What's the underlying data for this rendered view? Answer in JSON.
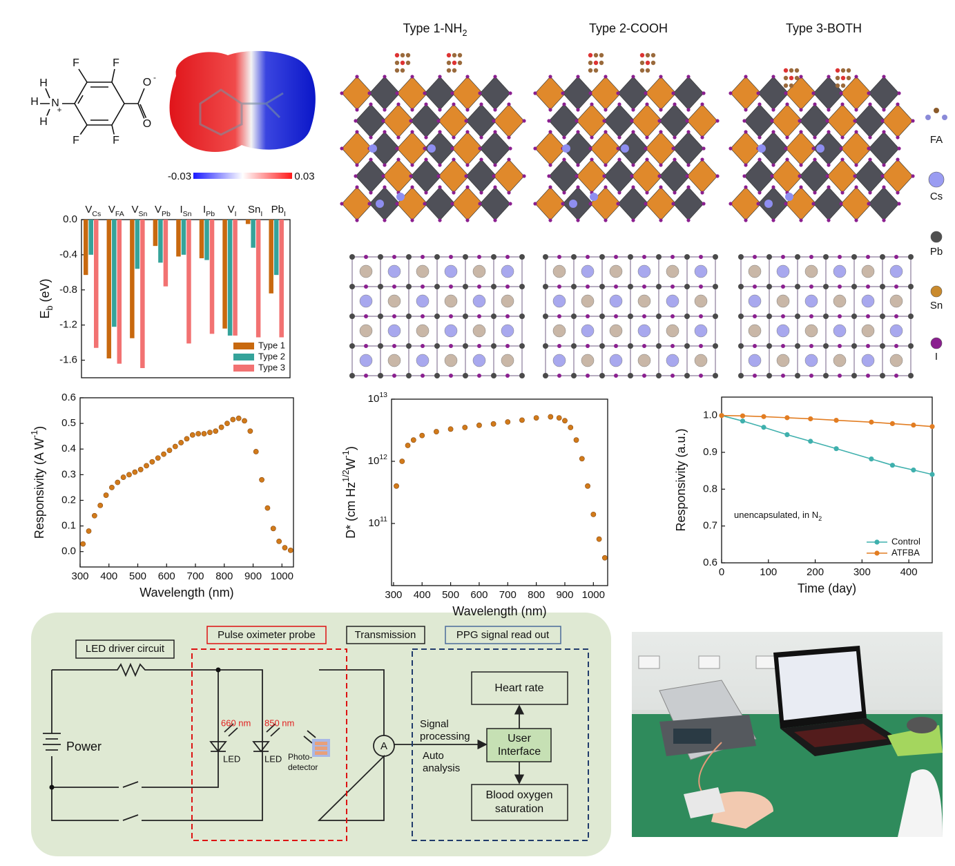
{
  "figure": {
    "molecule": {
      "atoms": [
        "H",
        "H",
        "H",
        "N",
        "+",
        "F",
        "F",
        "F",
        "F",
        "O",
        "-",
        "O"
      ]
    },
    "esp_scale": [
      "-0.03",
      "0.03"
    ],
    "structures": {
      "titles": [
        [
          {
            "text": "Type 1-NH"
          },
          {
            "text": "2",
            "sub": true
          }
        ],
        [
          {
            "text": "Type 2-COOH"
          }
        ],
        [
          {
            "text": "Type 3-BOTH"
          }
        ]
      ],
      "atom_legend": [
        "FA",
        "Cs",
        "Pb",
        "Sn",
        "I"
      ]
    },
    "circuit": {
      "led_driver": "LED driver circuit",
      "probe": "Pulse oximeter probe",
      "transmission": "Transmission",
      "ppg": "PPG signal read out",
      "power": "Power",
      "wl1": "660 nm",
      "wl2": "850 nm",
      "led1": "LED",
      "led2": "LED",
      "photodetector": [
        "Photo-",
        "detector"
      ],
      "ammeter": "A",
      "signal_processing": [
        "Signal",
        "processing"
      ],
      "auto_analysis": [
        "Auto",
        "analysis"
      ],
      "heart_rate": "Heart rate",
      "user_interface": [
        "User",
        "Interface"
      ],
      "blood_oxygen": [
        "Blood oxygen",
        "saturation"
      ]
    }
  },
  "chart_data": [
    {
      "type": "bar",
      "xaxis_position": "top",
      "categories": [
        [
          {
            "text": "V"
          },
          {
            "text": "Cs",
            "sub": true
          }
        ],
        [
          {
            "text": "V"
          },
          {
            "text": "FA",
            "sub": true
          }
        ],
        [
          {
            "text": "V"
          },
          {
            "text": "Sn",
            "sub": true
          }
        ],
        [
          {
            "text": "V"
          },
          {
            "text": "Pb",
            "sub": true
          }
        ],
        [
          {
            "text": "I"
          },
          {
            "text": "Sn",
            "sub": true
          }
        ],
        [
          {
            "text": "I"
          },
          {
            "text": "Pb",
            "sub": true
          }
        ],
        [
          {
            "text": "V"
          },
          {
            "text": "I",
            "sub": true
          }
        ],
        [
          {
            "text": "Sn"
          },
          {
            "text": "I",
            "sub": true
          }
        ],
        [
          {
            "text": "Pb"
          },
          {
            "text": "I",
            "sub": true
          }
        ]
      ],
      "series": [
        {
          "name": "Type 1",
          "color": "#c8690f",
          "values": [
            -0.63,
            -1.58,
            -1.35,
            -0.3,
            -0.42,
            -0.44,
            -1.24,
            -0.05,
            -0.84
          ]
        },
        {
          "name": "Type 2",
          "color": "#35a39a",
          "values": [
            -0.4,
            -1.22,
            -0.56,
            -0.49,
            -0.4,
            -0.46,
            -1.32,
            -0.32,
            -0.63
          ]
        },
        {
          "name": "Type 3",
          "color": "#f27272",
          "values": [
            -1.46,
            -1.64,
            -1.69,
            -0.76,
            -1.41,
            -1.3,
            -1.32,
            -1.34,
            -1.34
          ]
        }
      ],
      "ylabel": [
        {
          "text": "E"
        },
        {
          "text": "b",
          "sub": true
        },
        {
          "text": " (eV)"
        }
      ],
      "ylim": [
        -1.8,
        0
      ],
      "yticks": [
        {
          "value": 0,
          "label": "0.0"
        },
        -0.4,
        -0.8,
        -1.2,
        -1.6
      ],
      "legend": "lower right"
    },
    {
      "type": "line",
      "line_style": "markers",
      "color": "#d17a1a",
      "x": [
        310,
        330,
        350,
        370,
        390,
        410,
        430,
        450,
        470,
        490,
        510,
        530,
        550,
        570,
        590,
        610,
        630,
        650,
        670,
        690,
        710,
        730,
        750,
        770,
        790,
        810,
        830,
        850,
        870,
        890,
        910,
        930,
        950,
        970,
        990,
        1010,
        1030
      ],
      "values": [
        0.03,
        0.08,
        0.14,
        0.18,
        0.22,
        0.25,
        0.27,
        0.29,
        0.3,
        0.31,
        0.32,
        0.335,
        0.35,
        0.365,
        0.38,
        0.395,
        0.41,
        0.425,
        0.44,
        0.455,
        0.46,
        0.46,
        0.465,
        0.47,
        0.485,
        0.5,
        0.515,
        0.52,
        0.51,
        0.47,
        0.39,
        0.28,
        0.17,
        0.09,
        0.04,
        0.015,
        0.005
      ],
      "xlabel": [
        {
          "text": "Wavelength (nm)"
        }
      ],
      "ylabel": [
        {
          "text": "Responsivity (A W"
        },
        {
          "text": "-1",
          "sup": true
        },
        {
          "text": ")"
        }
      ],
      "xlim": [
        300,
        1040
      ],
      "xticks": [
        300,
        400,
        500,
        600,
        700,
        800,
        900,
        1000
      ],
      "ylim": [
        -0.06,
        0.6
      ],
      "yticks": [
        {
          "value": 0,
          "label": "0.0"
        },
        0.1,
        0.2,
        0.3,
        0.4,
        0.5,
        0.6
      ]
    },
    {
      "type": "line",
      "line_style": "markers",
      "yscale": "log",
      "color": "#d17a1a",
      "x": [
        310,
        330,
        350,
        370,
        400,
        450,
        500,
        550,
        600,
        650,
        700,
        750,
        800,
        850,
        880,
        900,
        920,
        940,
        960,
        980,
        1000,
        1020,
        1040
      ],
      "values": [
        400000000000,
        1000000000000,
        1800000000000,
        2200000000000,
        2600000000000,
        3000000000000,
        3300000000000,
        3500000000000,
        3800000000000,
        4000000000000,
        4300000000000,
        4600000000000,
        5000000000000,
        5200000000000,
        5000000000000,
        4500000000000,
        3500000000000,
        2200000000000,
        1100000000000,
        400000000000,
        140000000000,
        56000000000,
        28000000000
      ],
      "xlabel": [
        {
          "text": "Wavelength (nm)"
        }
      ],
      "ylabel": [
        {
          "text": "D* (cm Hz"
        },
        {
          "text": "1/2",
          "sup": true
        },
        {
          "text": "W"
        },
        {
          "text": "-1",
          "sup": true
        },
        {
          "text": ")"
        }
      ],
      "xlim": [
        293,
        1050
      ],
      "xticks": [
        300,
        400,
        500,
        600,
        700,
        800,
        900,
        1000
      ],
      "ylim": [
        10000000000,
        10000000000000
      ],
      "yticks": [
        {
          "value": 100000000000,
          "label": "10",
          "label_sup": "11"
        },
        {
          "value": 1000000000000,
          "label": "10",
          "label_sup": "12"
        },
        {
          "value": 10000000000000,
          "label": "10",
          "label_sup": "13"
        }
      ]
    },
    {
      "type": "line",
      "line_style": "lines+markers",
      "x": [
        0,
        45,
        90,
        140,
        190,
        245,
        320,
        365,
        410,
        450
      ],
      "series": [
        {
          "name": "Control",
          "color": "#3fb0ad",
          "values": [
            1.0,
            0.985,
            0.968,
            0.948,
            0.93,
            0.91,
            0.882,
            0.865,
            0.852,
            0.84
          ]
        },
        {
          "name": "ATFBA",
          "color": "#e27d22",
          "values": [
            1.0,
            0.999,
            0.997,
            0.994,
            0.991,
            0.987,
            0.982,
            0.978,
            0.974,
            0.97
          ]
        }
      ],
      "xlabel": [
        {
          "text": "Time (day)"
        }
      ],
      "ylabel": [
        {
          "text": "Responsivity (a.u.)"
        }
      ],
      "annotation": [
        {
          "text": "unencapsulated, in N"
        },
        {
          "text": "2",
          "sub": true
        }
      ],
      "xlim": [
        0,
        450
      ],
      "xticks": [
        0,
        100,
        200,
        300,
        400
      ],
      "ylim": [
        0.6,
        1.05
      ],
      "yticks": [
        0.6,
        0.7,
        0.8,
        0.9,
        {
          "value": 1,
          "label": "1.0"
        }
      ],
      "legend": "lower right"
    }
  ]
}
